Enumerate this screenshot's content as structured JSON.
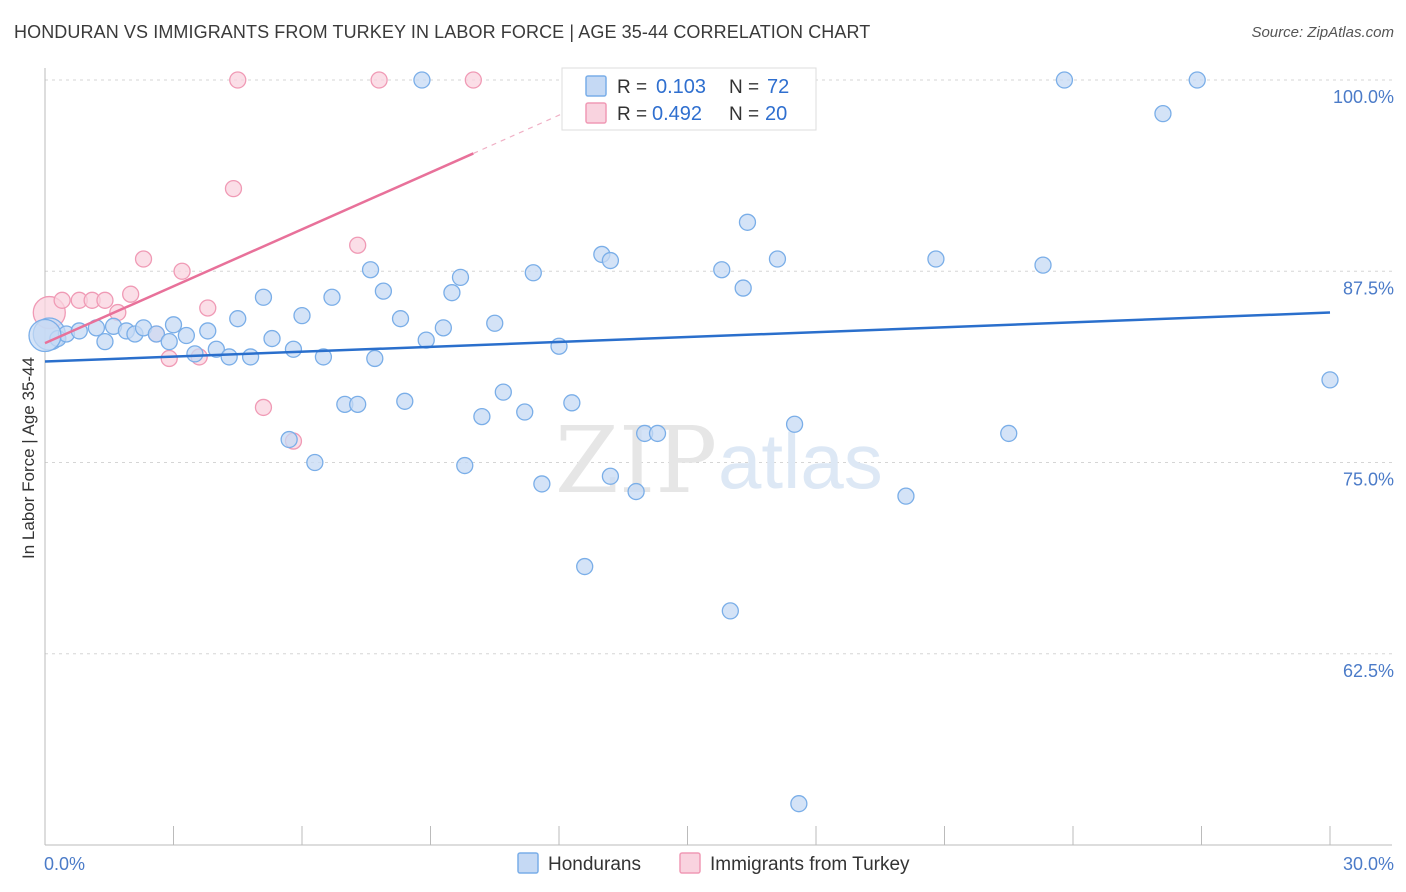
{
  "title": "HONDURAN VS IMMIGRANTS FROM TURKEY IN LABOR FORCE | AGE 35-44 CORRELATION CHART",
  "source": "Source: ZipAtlas.com",
  "watermark": {
    "zip": "ZIP",
    "atlas": "atlas"
  },
  "chart_data": {
    "type": "scatter",
    "xlabel": "",
    "ylabel": "In Labor Force | Age 35-44",
    "xlim": [
      0.0,
      30.0
    ],
    "ylim": [
      50.0,
      100.0
    ],
    "x_tick_labels": {
      "min": "0.0%",
      "max": "30.0%"
    },
    "y_ticks": [
      100.0,
      87.5,
      75.0,
      62.5
    ],
    "y_tick_labels": [
      "100.0%",
      "87.5%",
      "75.0%",
      "62.5%"
    ],
    "grid": true,
    "legend": {
      "position": "top-center",
      "r_label": "R =",
      "n_label": "N ="
    },
    "series": [
      {
        "name": "Hondurans",
        "color": "#7aaee8",
        "fill": "#c5d9f4",
        "line_color": "#2a6fcc",
        "R": "0.103",
        "N": "72",
        "trend": {
          "x": [
            0.0,
            30.0
          ],
          "y": [
            81.6,
            84.8
          ]
        },
        "points": [
          [
            0.1,
            83.4
          ],
          [
            0.3,
            83.1
          ],
          [
            0.5,
            83.4
          ],
          [
            0.8,
            83.6
          ],
          [
            1.2,
            83.8
          ],
          [
            1.4,
            82.9
          ],
          [
            1.6,
            83.9
          ],
          [
            1.9,
            83.6
          ],
          [
            2.1,
            83.4
          ],
          [
            2.3,
            83.8
          ],
          [
            2.6,
            83.4
          ],
          [
            2.9,
            82.9
          ],
          [
            3.0,
            84.0
          ],
          [
            3.3,
            83.3
          ],
          [
            3.5,
            82.1
          ],
          [
            3.8,
            83.6
          ],
          [
            4.0,
            82.4
          ],
          [
            4.3,
            81.9
          ],
          [
            4.5,
            84.4
          ],
          [
            4.8,
            81.9
          ],
          [
            5.1,
            85.8
          ],
          [
            5.3,
            83.1
          ],
          [
            5.7,
            76.5
          ],
          [
            5.8,
            82.4
          ],
          [
            6.0,
            84.6
          ],
          [
            6.3,
            75.0
          ],
          [
            6.5,
            81.9
          ],
          [
            6.7,
            85.8
          ],
          [
            7.0,
            78.8
          ],
          [
            7.3,
            78.8
          ],
          [
            7.6,
            87.6
          ],
          [
            7.7,
            81.8
          ],
          [
            7.9,
            86.2
          ],
          [
            8.3,
            84.4
          ],
          [
            8.4,
            79.0
          ],
          [
            8.9,
            83.0
          ],
          [
            9.3,
            83.8
          ],
          [
            9.5,
            86.1
          ],
          [
            9.7,
            87.1
          ],
          [
            9.8,
            74.8
          ],
          [
            10.2,
            78.0
          ],
          [
            10.5,
            84.1
          ],
          [
            10.7,
            79.6
          ],
          [
            11.2,
            78.3
          ],
          [
            11.4,
            87.4
          ],
          [
            11.6,
            73.6
          ],
          [
            12.0,
            82.6
          ],
          [
            12.3,
            78.9
          ],
          [
            12.6,
            68.2
          ],
          [
            13.0,
            88.6
          ],
          [
            13.2,
            88.2
          ],
          [
            13.2,
            74.1
          ],
          [
            13.8,
            73.1
          ],
          [
            14.0,
            76.9
          ],
          [
            14.3,
            76.9
          ],
          [
            15.8,
            87.6
          ],
          [
            16.0,
            65.3
          ],
          [
            16.3,
            86.4
          ],
          [
            16.4,
            90.7
          ],
          [
            17.1,
            88.3
          ],
          [
            17.5,
            77.5
          ],
          [
            17.6,
            52.7
          ],
          [
            20.1,
            72.8
          ],
          [
            20.8,
            88.3
          ],
          [
            22.5,
            76.9
          ],
          [
            23.3,
            87.9
          ],
          [
            23.8,
            100.0
          ],
          [
            26.1,
            97.8
          ],
          [
            26.9,
            100.0
          ],
          [
            30.0,
            80.4
          ],
          [
            8.8,
            100.0
          ],
          [
            0.0,
            83.3
          ]
        ]
      },
      {
        "name": "Immigrants from Turkey",
        "color": "#f09ab5",
        "fill": "#f9d3df",
        "line_color": "#e8719a",
        "R": "0.492",
        "N": "20",
        "trend": {
          "x": [
            0.0,
            10.0
          ],
          "y": [
            82.8,
            95.2
          ]
        },
        "trend_ext": {
          "x": [
            10.0,
            13.2
          ],
          "y": [
            95.2,
            99.2
          ]
        },
        "points": [
          [
            0.1,
            84.8
          ],
          [
            0.4,
            85.6
          ],
          [
            0.8,
            85.6
          ],
          [
            1.1,
            85.6
          ],
          [
            1.4,
            85.6
          ],
          [
            1.7,
            84.8
          ],
          [
            2.0,
            86.0
          ],
          [
            2.3,
            88.3
          ],
          [
            2.6,
            83.4
          ],
          [
            2.9,
            81.8
          ],
          [
            3.2,
            87.5
          ],
          [
            3.6,
            81.9
          ],
          [
            3.8,
            85.1
          ],
          [
            4.4,
            92.9
          ],
          [
            4.5,
            100.0
          ],
          [
            5.1,
            78.6
          ],
          [
            5.8,
            76.4
          ],
          [
            7.3,
            89.2
          ],
          [
            7.8,
            100.0
          ],
          [
            10.0,
            100.0
          ]
        ]
      }
    ]
  }
}
